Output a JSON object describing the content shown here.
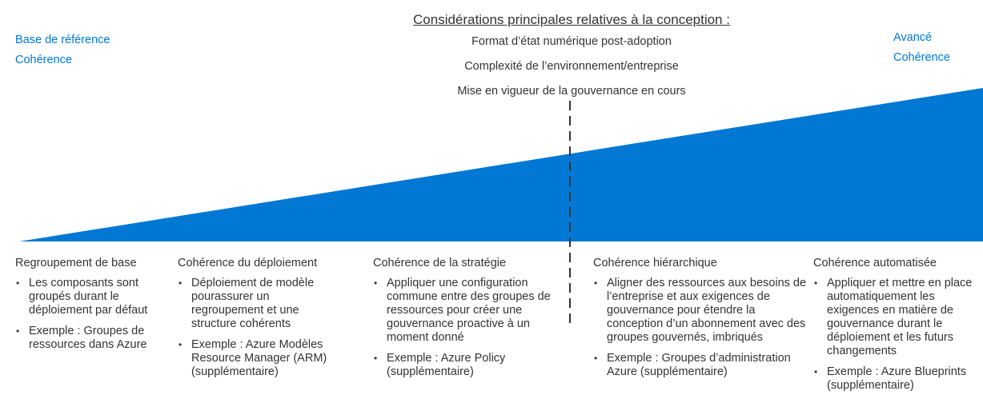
{
  "header": {
    "title": "Considérations principales  relatives à la conception :",
    "considerations": [
      "Format d’état numérique post-adoption",
      "Complexité de l’environnement/entreprise",
      "Mise en vigueur de la gouvernance en cours"
    ]
  },
  "corners": {
    "left": [
      "Base de référence",
      "Cohérence"
    ],
    "right": [
      "Avancé",
      "Cohérence"
    ]
  },
  "columns": [
    {
      "title": "Regroupement de base",
      "bullets": [
        "Les composants sont groupés durant le déploiement par défaut",
        "Exemple : Groupes de ressources dans Azure"
      ]
    },
    {
      "title": "Cohérence du déploiement",
      "bullets": [
        "Déploiement de modèle pourassurer un regroupement et une structure cohérents",
        "Exemple : Azure Modèles Resource Manager (ARM)(supplémentaire)"
      ]
    },
    {
      "title": "Cohérence de la stratégie",
      "bullets": [
        "Appliquer une configuration commune entre des groupes de ressources pour créer une gouvernance proactive à un moment donné",
        "Exemple : Azure Policy (supplémentaire)"
      ]
    },
    {
      "title": "Cohérence hiérarchique",
      "bullets": [
        "Aligner des ressources aux besoins de l’entreprise et aux exigences de gouvernance pour étendre la conception d’un abonnement avec des groupes gouvernés, imbriqués",
        "Exemple : Groupes d’administration Azure (supplémentaire)"
      ]
    },
    {
      "title": "Cohérence automatisée",
      "bullets": [
        "Appliquer et mettre en place automatiquement les exigences en matière de gouvernance durant le déploiement et les futurs changements",
        "Exemple : Azure Blueprints (supplémentaire)"
      ]
    }
  ],
  "colors": {
    "accent": "#0078d4",
    "text": "#333333"
  }
}
